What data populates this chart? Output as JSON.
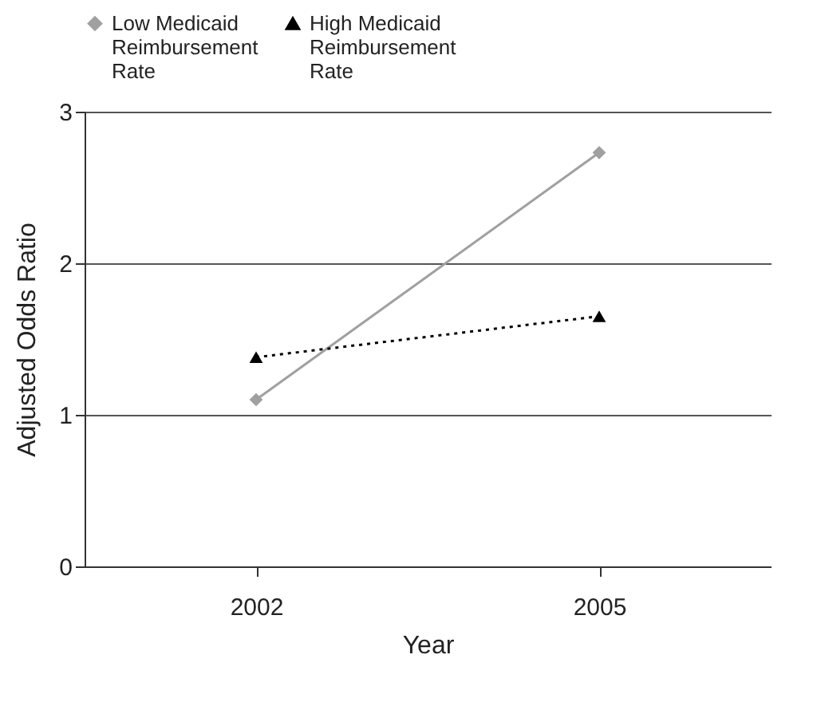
{
  "chart_data": {
    "type": "line",
    "xlabel": "Year",
    "ylabel": "Adjusted Odds Ratio",
    "categories": [
      "2002",
      "2005"
    ],
    "series": [
      {
        "name": "Low Medicaid Reimbursement Rate",
        "color": "#a0a0a0",
        "values": [
          1.1,
          2.73
        ],
        "marker": "diamond",
        "line_style": "solid"
      },
      {
        "name": "High Medicaid Reimbursement Rate",
        "color": "#000000",
        "values": [
          1.38,
          1.65
        ],
        "marker": "triangle",
        "line_style": "dotted"
      }
    ],
    "ylim": [
      0,
      3
    ],
    "yticks": [
      0,
      1,
      2,
      3
    ],
    "grid": "y",
    "legend": "top"
  }
}
